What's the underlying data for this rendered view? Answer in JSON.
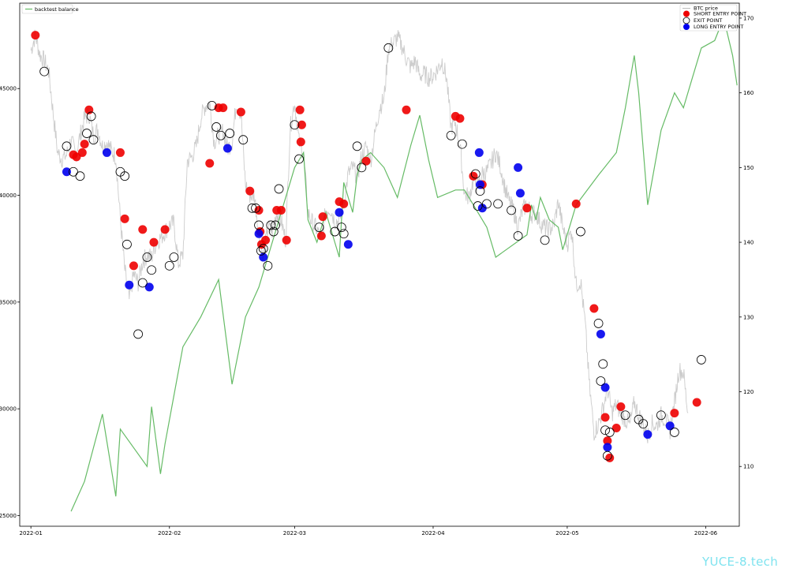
{
  "chart_data": {
    "type": "line",
    "x_axis": {
      "tick_labels": [
        "2022-01",
        "2022-02",
        "2022-03",
        "2022-04",
        "2022-05",
        "2022-06"
      ],
      "tick_days": [
        0,
        31,
        59,
        90,
        120,
        151
      ],
      "range_days": [
        -2.5,
        158.5
      ]
    },
    "y_left": {
      "ticks": [
        25000,
        30000,
        35000,
        40000,
        45000
      ],
      "range": [
        24500,
        49000
      ]
    },
    "y_right": {
      "ticks": [
        110,
        120,
        130,
        140,
        150,
        160,
        170
      ],
      "range": [
        102,
        172
      ]
    },
    "legend_left": {
      "placement": "top-left",
      "entries": [
        {
          "label": "backtest balance",
          "color": "#66bb66"
        }
      ]
    },
    "legend_right": {
      "placement": "top-right",
      "entries": [
        {
          "label": "BTC price",
          "color": "#bbbbbb",
          "kind": "line"
        },
        {
          "label": "SHORT ENTRY POINT",
          "color": "#ee0000",
          "kind": "dot"
        },
        {
          "label": "EXIT POINT",
          "color": "#ffffff",
          "kind": "ring"
        },
        {
          "label": "LONG ENTRY POINT",
          "color": "#0000ee",
          "kind": "dot"
        }
      ]
    },
    "series": [
      {
        "name": "BTC price",
        "axis": "left",
        "color": "#cccccc",
        "points": [
          [
            0,
            46800
          ],
          [
            1,
            47500
          ],
          [
            2,
            46600
          ],
          [
            3,
            46300
          ],
          [
            4,
            45800
          ],
          [
            5,
            43800
          ],
          [
            6,
            42000
          ],
          [
            7,
            41700
          ],
          [
            8,
            41900
          ],
          [
            9,
            42600
          ],
          [
            10,
            41900
          ],
          [
            11,
            42800
          ],
          [
            12,
            43600
          ],
          [
            13,
            43800
          ],
          [
            14,
            42800
          ],
          [
            15,
            43100
          ],
          [
            16,
            42300
          ],
          [
            17,
            42500
          ],
          [
            18,
            42100
          ],
          [
            19,
            41800
          ],
          [
            20,
            38900
          ],
          [
            21,
            36500
          ],
          [
            22,
            35100
          ],
          [
            23,
            36300
          ],
          [
            24,
            35900
          ],
          [
            25,
            36900
          ],
          [
            26,
            37200
          ],
          [
            27,
            37100
          ],
          [
            28,
            37800
          ],
          [
            29,
            38000
          ],
          [
            30,
            38300
          ],
          [
            31,
            38600
          ],
          [
            32,
            38700
          ],
          [
            33,
            36800
          ],
          [
            34,
            37200
          ],
          [
            35,
            41600
          ],
          [
            36,
            41800
          ],
          [
            37,
            42300
          ],
          [
            38,
            43600
          ],
          [
            39,
            44200
          ],
          [
            40,
            44300
          ],
          [
            41,
            42500
          ],
          [
            42,
            42800
          ],
          [
            43,
            43000
          ],
          [
            44,
            42200
          ],
          [
            45,
            42500
          ],
          [
            46,
            44400
          ],
          [
            47,
            43800
          ],
          [
            48,
            40500
          ],
          [
            49,
            40000
          ],
          [
            50,
            40000
          ],
          [
            51,
            38300
          ],
          [
            52,
            37000
          ],
          [
            53,
            38500
          ],
          [
            54,
            38300
          ],
          [
            55,
            39200
          ],
          [
            56,
            38800
          ],
          [
            57,
            37900
          ],
          [
            58,
            43100
          ],
          [
            59,
            44400
          ],
          [
            60,
            42500
          ],
          [
            61,
            42000
          ],
          [
            62,
            39200
          ],
          [
            63,
            38700
          ],
          [
            64,
            38400
          ],
          [
            65,
            37900
          ],
          [
            66,
            39300
          ],
          [
            67,
            39400
          ],
          [
            68,
            38800
          ],
          [
            69,
            38800
          ],
          [
            70,
            39600
          ],
          [
            71,
            41000
          ],
          [
            72,
            41300
          ],
          [
            73,
            40900
          ],
          [
            74,
            41800
          ],
          [
            75,
            42300
          ],
          [
            76,
            41600
          ],
          [
            77,
            42900
          ],
          [
            78,
            44100
          ],
          [
            79,
            44500
          ],
          [
            80,
            46900
          ],
          [
            81,
            47100
          ],
          [
            82,
            47400
          ],
          [
            83,
            47000
          ],
          [
            84,
            46400
          ],
          [
            85,
            46000
          ],
          [
            86,
            46300
          ],
          [
            87,
            45600
          ],
          [
            88,
            45700
          ],
          [
            89,
            45500
          ],
          [
            90,
            45600
          ],
          [
            91,
            45900
          ],
          [
            92,
            46300
          ],
          [
            93,
            45500
          ],
          [
            94,
            43200
          ],
          [
            95,
            43400
          ],
          [
            96,
            42300
          ],
          [
            97,
            40100
          ],
          [
            98,
            39900
          ],
          [
            99,
            40700
          ],
          [
            100,
            40400
          ],
          [
            101,
            41000
          ],
          [
            102,
            41100
          ],
          [
            103,
            41500
          ],
          [
            104,
            42000
          ],
          [
            105,
            41400
          ],
          [
            106,
            40400
          ],
          [
            107,
            39700
          ],
          [
            108,
            39300
          ],
          [
            109,
            38500
          ],
          [
            110,
            39300
          ],
          [
            111,
            39600
          ],
          [
            112,
            39100
          ],
          [
            113,
            39200
          ],
          [
            114,
            38700
          ],
          [
            115,
            38500
          ],
          [
            116,
            38400
          ],
          [
            117,
            38600
          ],
          [
            118,
            39700
          ],
          [
            119,
            38500
          ],
          [
            120,
            37700
          ],
          [
            121,
            38400
          ],
          [
            122,
            35800
          ],
          [
            123,
            36000
          ],
          [
            124,
            34000
          ],
          [
            125,
            31000
          ],
          [
            126,
            28900
          ],
          [
            127,
            29300
          ],
          [
            128,
            30000
          ],
          [
            129,
            31000
          ],
          [
            130,
            29800
          ],
          [
            131,
            30200
          ],
          [
            132,
            29800
          ],
          [
            133,
            29500
          ],
          [
            134,
            29200
          ],
          [
            135,
            30300
          ],
          [
            136,
            29700
          ],
          [
            137,
            29300
          ],
          [
            138,
            28700
          ],
          [
            139,
            29300
          ],
          [
            140,
            29200
          ],
          [
            141,
            29700
          ],
          [
            142,
            29500
          ],
          [
            143,
            29000
          ],
          [
            144,
            30300
          ],
          [
            145,
            31800
          ],
          [
            146,
            31700
          ],
          [
            147,
            29800
          ]
        ]
      },
      {
        "name": "backtest balance",
        "axis": "right",
        "color": "#66bb66",
        "points": [
          [
            9,
            104
          ],
          [
            12,
            108
          ],
          [
            16,
            117
          ],
          [
            19,
            106
          ],
          [
            20,
            115
          ],
          [
            26,
            110
          ],
          [
            27,
            118
          ],
          [
            29,
            109
          ],
          [
            30,
            113
          ],
          [
            34,
            126
          ],
          [
            38,
            130
          ],
          [
            42,
            135
          ],
          [
            45,
            121
          ],
          [
            48,
            130
          ],
          [
            51,
            134
          ],
          [
            59,
            150
          ],
          [
            61,
            152
          ],
          [
            62,
            143
          ],
          [
            64,
            140
          ],
          [
            66,
            144
          ],
          [
            69,
            138
          ],
          [
            70,
            148
          ],
          [
            72,
            144
          ],
          [
            73,
            149
          ],
          [
            74,
            151
          ],
          [
            76,
            152
          ],
          [
            79,
            150
          ],
          [
            82,
            146
          ],
          [
            85,
            153
          ],
          [
            87,
            157
          ],
          [
            89,
            151
          ],
          [
            91,
            146
          ],
          [
            95,
            147
          ],
          [
            97,
            147
          ],
          [
            102,
            142
          ],
          [
            104,
            138
          ],
          [
            111,
            141
          ],
          [
            112,
            145
          ],
          [
            113,
            143
          ],
          [
            114,
            146
          ],
          [
            116,
            143
          ],
          [
            118,
            142
          ],
          [
            119,
            139
          ],
          [
            122,
            145
          ],
          [
            127,
            149
          ],
          [
            131,
            152
          ],
          [
            133,
            158
          ],
          [
            135,
            165
          ],
          [
            136,
            160
          ],
          [
            138,
            145
          ],
          [
            141,
            155
          ],
          [
            144,
            160
          ],
          [
            146,
            158
          ],
          [
            148,
            162
          ],
          [
            150,
            166
          ],
          [
            153,
            167
          ],
          [
            155,
            170
          ],
          [
            157,
            165
          ],
          [
            158,
            161
          ]
        ]
      }
    ],
    "short_entries": [
      [
        1,
        47500
      ],
      [
        9.5,
        41900
      ],
      [
        10.2,
        41800
      ],
      [
        11.5,
        42000
      ],
      [
        12,
        42400
      ],
      [
        13,
        44000
      ],
      [
        20,
        42000
      ],
      [
        21,
        38900
      ],
      [
        23,
        36700
      ],
      [
        25,
        38400
      ],
      [
        27.5,
        37800
      ],
      [
        30,
        38400
      ],
      [
        40,
        41500
      ],
      [
        42,
        44100
      ],
      [
        43,
        44100
      ],
      [
        47,
        43900
      ],
      [
        49,
        40200
      ],
      [
        51,
        39300
      ],
      [
        51.3,
        38300
      ],
      [
        51.6,
        37700
      ],
      [
        52.5,
        37900
      ],
      [
        55,
        39300
      ],
      [
        56,
        39300
      ],
      [
        57.2,
        37900
      ],
      [
        60.2,
        44000
      ],
      [
        60.4,
        42500
      ],
      [
        60.6,
        43300
      ],
      [
        65,
        38100
      ],
      [
        65.3,
        39000
      ],
      [
        69,
        39700
      ],
      [
        70,
        39600
      ],
      [
        75,
        41600
      ],
      [
        84,
        44000
      ],
      [
        95,
        43700
      ],
      [
        96,
        43600
      ],
      [
        99,
        40900
      ],
      [
        101,
        40500
      ],
      [
        111,
        39400
      ],
      [
        122,
        39600
      ],
      [
        126,
        34700
      ],
      [
        128.5,
        29600
      ],
      [
        129,
        28500
      ],
      [
        129.5,
        27700
      ],
      [
        131,
        29100
      ],
      [
        132,
        30100
      ],
      [
        144,
        29800
      ],
      [
        149,
        30300
      ]
    ],
    "exit_points": [
      [
        3,
        45800
      ],
      [
        8,
        42300
      ],
      [
        9.5,
        41100
      ],
      [
        11,
        40900
      ],
      [
        12.5,
        42900
      ],
      [
        13.5,
        43700
      ],
      [
        14,
        42600
      ],
      [
        20,
        41100
      ],
      [
        21,
        40900
      ],
      [
        21.5,
        37700
      ],
      [
        24,
        33500
      ],
      [
        25,
        35900
      ],
      [
        26,
        37100
      ],
      [
        27,
        36500
      ],
      [
        31,
        36700
      ],
      [
        32,
        37100
      ],
      [
        40.5,
        44200
      ],
      [
        41.5,
        43200
      ],
      [
        42.5,
        42800
      ],
      [
        44.5,
        42900
      ],
      [
        47.5,
        42600
      ],
      [
        49.5,
        39400
      ],
      [
        50.3,
        39400
      ],
      [
        51,
        38600
      ],
      [
        51.5,
        37400
      ],
      [
        52,
        37500
      ],
      [
        53,
        36700
      ],
      [
        53.7,
        38600
      ],
      [
        54.3,
        38300
      ],
      [
        54.7,
        38600
      ],
      [
        55.5,
        40300
      ],
      [
        59,
        43300
      ],
      [
        60,
        41700
      ],
      [
        64.5,
        38500
      ],
      [
        68,
        38300
      ],
      [
        69.5,
        38500
      ],
      [
        70,
        38200
      ],
      [
        73,
        42300
      ],
      [
        74,
        41300
      ],
      [
        80,
        46900
      ],
      [
        94,
        42800
      ],
      [
        96.5,
        42400
      ],
      [
        99.5,
        41000
      ],
      [
        100,
        39500
      ],
      [
        100.5,
        40200
      ],
      [
        102,
        39600
      ],
      [
        104.5,
        39600
      ],
      [
        107.5,
        39300
      ],
      [
        109,
        38100
      ],
      [
        115,
        37900
      ],
      [
        123,
        38300
      ],
      [
        127,
        34000
      ],
      [
        127.5,
        31300
      ],
      [
        128,
        32100
      ],
      [
        128.5,
        29000
      ],
      [
        129,
        27800
      ],
      [
        129.5,
        28900
      ],
      [
        133,
        29700
      ],
      [
        136,
        29500
      ],
      [
        137,
        29300
      ],
      [
        141,
        29700
      ],
      [
        144,
        28900
      ],
      [
        150,
        32300
      ]
    ],
    "long_entries": [
      [
        8,
        41100
      ],
      [
        17,
        42000
      ],
      [
        22,
        35800
      ],
      [
        26.5,
        35700
      ],
      [
        44,
        42200
      ],
      [
        51,
        38200
      ],
      [
        52,
        37100
      ],
      [
        69,
        39200
      ],
      [
        71,
        37700
      ],
      [
        100.3,
        42000
      ],
      [
        100.5,
        40500
      ],
      [
        101,
        39400
      ],
      [
        109,
        41300
      ],
      [
        109.5,
        40100
      ],
      [
        127.5,
        33500
      ],
      [
        128.5,
        31000
      ],
      [
        129,
        28200
      ],
      [
        138,
        28800
      ],
      [
        143,
        29200
      ]
    ]
  }
}
